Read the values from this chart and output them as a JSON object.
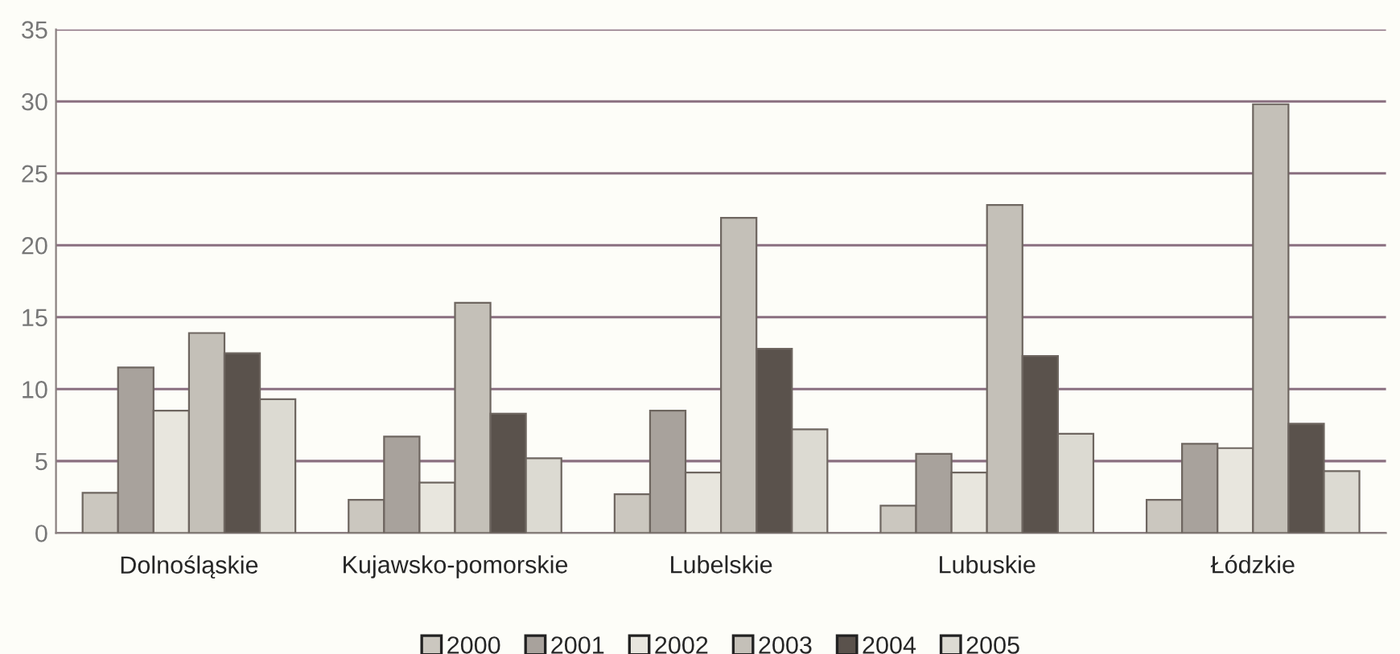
{
  "chart_data": {
    "type": "bar",
    "categories": [
      "Dolnośląskie",
      "Kujawsko-pomorskie",
      "Lubelskie",
      "Lubuskie",
      "Łódzkie"
    ],
    "series": [
      {
        "name": "2000",
        "color": "#cbc7bf",
        "values": [
          2.8,
          2.3,
          2.7,
          1.9,
          2.3
        ]
      },
      {
        "name": "2001",
        "color": "#a8a29c",
        "values": [
          11.5,
          6.7,
          8.5,
          5.5,
          6.2
        ]
      },
      {
        "name": "2002",
        "color": "#e8e6de",
        "values": [
          8.5,
          3.5,
          4.2,
          4.2,
          5.9
        ]
      },
      {
        "name": "2003",
        "color": "#c4c0b8",
        "values": [
          13.9,
          16.0,
          21.9,
          22.8,
          29.8
        ]
      },
      {
        "name": "2004",
        "color": "#5a524c",
        "values": [
          12.5,
          8.3,
          12.8,
          12.3,
          7.6
        ]
      },
      {
        "name": "2005",
        "color": "#dcdad2",
        "values": [
          9.3,
          5.2,
          7.2,
          6.9,
          4.3
        ]
      }
    ],
    "ylim": [
      0,
      35
    ],
    "yticks": [
      0,
      5,
      10,
      15,
      20,
      25,
      30,
      35
    ],
    "grid": "y",
    "legend": "bottom"
  }
}
